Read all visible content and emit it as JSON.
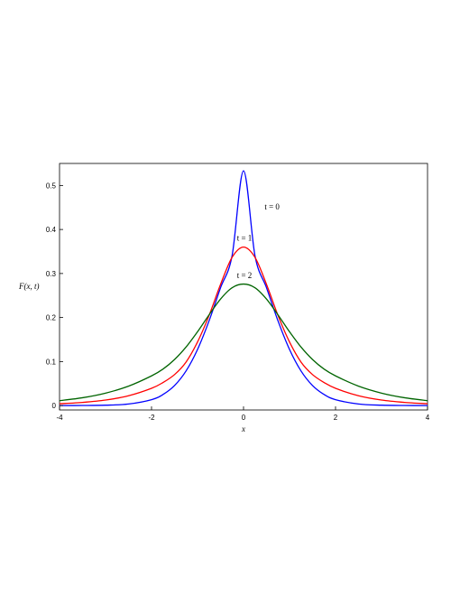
{
  "chart_data": {
    "type": "line",
    "xlabel": "x",
    "ylabel": "F(x, t)",
    "xlim": [
      -4,
      4
    ],
    "ylim": [
      -0.01,
      0.55
    ],
    "x_ticks": [
      -4,
      -2,
      0,
      2,
      4
    ],
    "x_tick_labels": [
      "-4",
      "-2",
      "0",
      "2",
      "4"
    ],
    "y_ticks": [
      0,
      0.1,
      0.2,
      0.3,
      0.4,
      0.5
    ],
    "y_tick_labels": [
      "0",
      "0.1",
      "0.2",
      "0.3",
      "0.4",
      "0.5"
    ],
    "grid": false,
    "legend": "none",
    "series": [
      {
        "name": "t = 0",
        "color": "#0000ff",
        "x": [
          -4,
          -3.5,
          -3,
          -2.5,
          -2,
          -1.75,
          -1.5,
          -1.25,
          -1,
          -0.75,
          -0.5,
          -0.25,
          0,
          0.25,
          0.5,
          0.75,
          1,
          1.25,
          1.5,
          1.75,
          2,
          2.5,
          3,
          3.5,
          4
        ],
        "y": [
          3e-05,
          0.0002,
          0.0009,
          0.0036,
          0.0134,
          0.0252,
          0.0455,
          0.0786,
          0.1275,
          0.1922,
          0.2676,
          0.3398,
          0.5333,
          0.3398,
          0.2676,
          0.1922,
          0.1275,
          0.0786,
          0.0455,
          0.0252,
          0.0134,
          0.0036,
          0.0009,
          0.0002,
          3e-05
        ]
      },
      {
        "name": "t = 1",
        "color": "#ff0000",
        "x": [
          -4,
          -3.5,
          -3,
          -2.5,
          -2,
          -1.75,
          -1.5,
          -1.25,
          -1,
          -0.75,
          -0.5,
          -0.25,
          0,
          0.25,
          0.5,
          0.75,
          1,
          1.25,
          1.5,
          1.75,
          2,
          2.5,
          3,
          3.5,
          4
        ],
        "y": [
          0.0041,
          0.0072,
          0.0125,
          0.0223,
          0.0392,
          0.0524,
          0.0704,
          0.0988,
          0.1445,
          0.2045,
          0.2751,
          0.3365,
          0.36,
          0.3365,
          0.2751,
          0.2045,
          0.1445,
          0.0988,
          0.0704,
          0.0524,
          0.0392,
          0.0223,
          0.0125,
          0.0072,
          0.0041
        ]
      },
      {
        "name": "t = 2",
        "color": "#006400",
        "x": [
          -4,
          -3.5,
          -3,
          -2.5,
          -2,
          -1.75,
          -1.5,
          -1.25,
          -1,
          -0.75,
          -0.5,
          -0.25,
          0,
          0.25,
          0.5,
          0.75,
          1,
          1.25,
          1.5,
          1.75,
          2,
          2.5,
          3,
          3.5,
          4
        ],
        "y": [
          0.0111,
          0.0178,
          0.0283,
          0.0441,
          0.0674,
          0.0829,
          0.1046,
          0.1329,
          0.1676,
          0.2059,
          0.2419,
          0.2676,
          0.276,
          0.2676,
          0.2419,
          0.2059,
          0.1676,
          0.1329,
          0.1046,
          0.0829,
          0.0674,
          0.0441,
          0.0283,
          0.0178,
          0.0111
        ]
      }
    ],
    "annotations": [
      {
        "text": "t = 0",
        "series": 0,
        "x": 0.62,
        "y": 0.445
      },
      {
        "text": "t = 1",
        "series": 1,
        "x": 0.02,
        "y": 0.375
      },
      {
        "text": "t = 2",
        "series": 2,
        "x": 0.02,
        "y": 0.29
      }
    ]
  }
}
